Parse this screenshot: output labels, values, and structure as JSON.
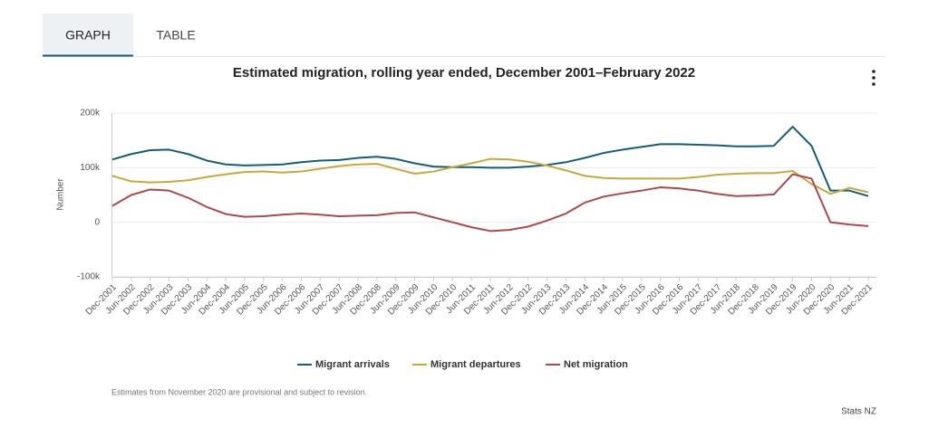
{
  "tabs": [
    "GRAPH",
    "TABLE"
  ],
  "chart_data": {
    "type": "line",
    "title": "Estimated migration, rolling year ended, December 2001–February 2022",
    "y_label": "Number",
    "categories": [
      "Dec-2001",
      "Jun-2002",
      "Dec-2002",
      "Jun-2003",
      "Dec-2003",
      "Jun-2004",
      "Dec-2004",
      "Jun-2005",
      "Dec-2005",
      "Jun-2006",
      "Dec-2006",
      "Jun-2007",
      "Dec-2007",
      "Jun-2008",
      "Dec-2008",
      "Jun-2009",
      "Dec-2009",
      "Jun-2010",
      "Dec-2010",
      "Jun-2011",
      "Dec-2011",
      "Jun-2012",
      "Dec-2012",
      "Jun-2013",
      "Dec-2013",
      "Jun-2014",
      "Dec-2014",
      "Jun-2015",
      "Dec-2015",
      "Jun-2016",
      "Dec-2016",
      "Jun-2017",
      "Dec-2017",
      "Jun-2018",
      "Dec-2018",
      "Jun-2019",
      "Dec-2019",
      "Jun-2020",
      "Dec-2020",
      "Jun-2021",
      "Dec-2021"
    ],
    "series": [
      {
        "name": "Migrant arrivals",
        "color": "#115e76",
        "values": [
          115000,
          125000,
          132000,
          133000,
          125000,
          113000,
          106000,
          104000,
          105000,
          106000,
          110000,
          113000,
          114000,
          118000,
          120000,
          116000,
          108000,
          102000,
          101000,
          101000,
          100000,
          100000,
          102000,
          105000,
          110000,
          118000,
          127000,
          133000,
          138000,
          143000,
          143000,
          142000,
          141000,
          139000,
          139000,
          140000,
          175000,
          140000,
          58000,
          58000,
          48000
        ]
      },
      {
        "name": "Migrant departures",
        "color": "#c9a83a",
        "values": [
          85000,
          75000,
          73000,
          74000,
          77000,
          83000,
          88000,
          92000,
          93000,
          91000,
          93000,
          98000,
          103000,
          106000,
          107000,
          98000,
          89000,
          93000,
          101000,
          108000,
          116000,
          115000,
          111000,
          104000,
          95000,
          85000,
          81000,
          80000,
          80000,
          80000,
          80000,
          83000,
          87000,
          89000,
          90000,
          90000,
          94000,
          70000,
          52000,
          63000,
          55000
        ]
      },
      {
        "name": "Net migration",
        "color": "#b0474a",
        "values": [
          30000,
          50000,
          60000,
          58000,
          45000,
          28000,
          15000,
          10000,
          11000,
          14000,
          16000,
          14000,
          11000,
          12000,
          13000,
          17000,
          18000,
          9000,
          0,
          -9000,
          -16000,
          -14000,
          -8000,
          3000,
          16000,
          36000,
          47000,
          53000,
          58000,
          64000,
          62000,
          58000,
          52000,
          48000,
          49000,
          51000,
          88000,
          80000,
          0,
          -4000,
          -7000
        ]
      }
    ],
    "ylim": [
      -100000,
      200000
    ],
    "yticks": [
      {
        "value": -100000,
        "label": "-100k"
      },
      {
        "value": 0,
        "label": "0"
      },
      {
        "value": 100000,
        "label": "100k"
      },
      {
        "value": 200000,
        "label": "200k"
      }
    ],
    "grid": true
  },
  "note": "Estimates from November 2020 are provisional and subject to revision.",
  "source": "Stats NZ"
}
